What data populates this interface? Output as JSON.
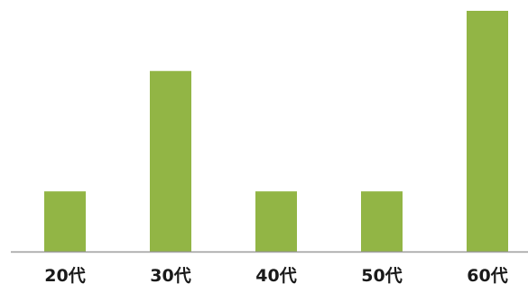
{
  "colors": {
    "bar": "#92b545",
    "axis": "#9a9a9a",
    "text": "#1a1a1a"
  },
  "chart_data": {
    "type": "bar",
    "categories": [
      "20代",
      "30代",
      "40代",
      "50代",
      "60代"
    ],
    "values": [
      1,
      3,
      1,
      1,
      4
    ],
    "ylim": [
      0,
      4
    ],
    "grid": false,
    "legend": "none"
  }
}
